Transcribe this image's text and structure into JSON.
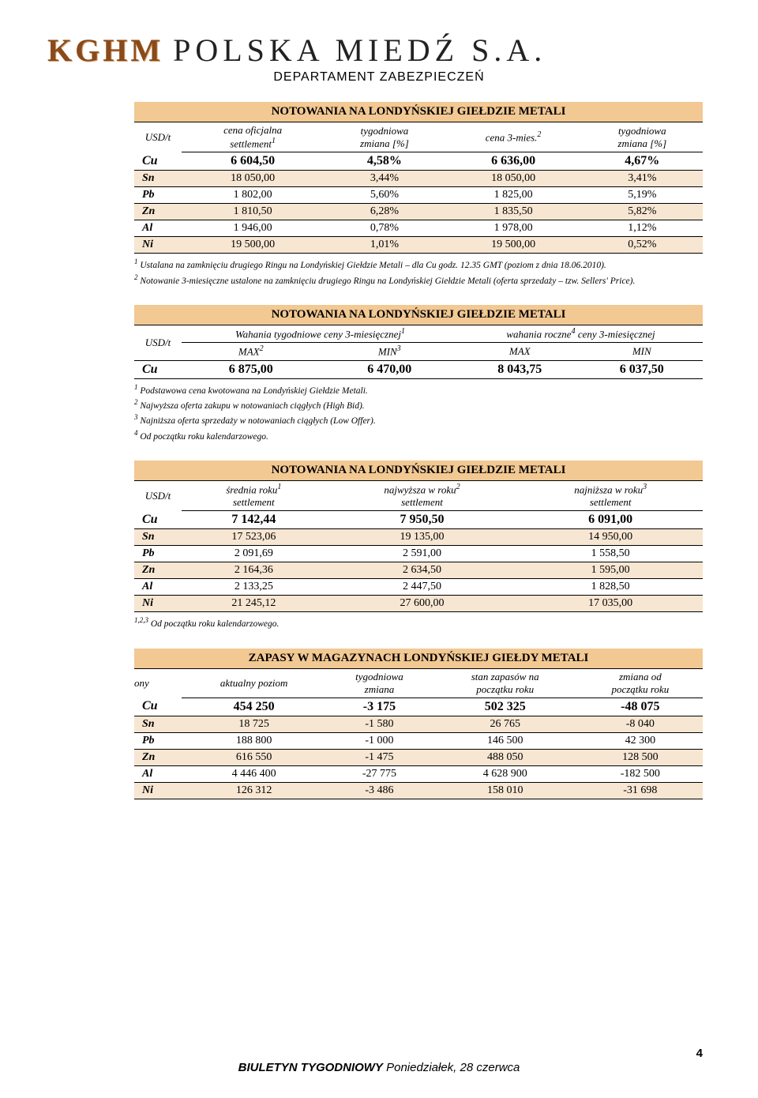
{
  "company": {
    "kghm": "KGHM",
    "rest": "POLSKA MIEDŹ S.A.",
    "dept": "DEPARTAMENT ZABEZPIECZEŃ"
  },
  "table1": {
    "title": "NOTOWANIA NA LONDYŃSKIEJ GIEŁDZIE METALI",
    "unit": "USD/t",
    "h1": "cena oficjalna",
    "h1b": "settlement",
    "h1sup": "1",
    "h2": "tygodniowa",
    "h2b": "zmiana [%]",
    "h3": "cena 3-mies.",
    "h3sup": "2",
    "h4": "tygodniowa",
    "h4b": "zmiana [%]",
    "rows": [
      {
        "sym": "Cu",
        "a": "6 604,50",
        "b": "4,58%",
        "c": "6 636,00",
        "d": "4,67%",
        "bold": true
      },
      {
        "sym": "Sn",
        "a": "18 050,00",
        "b": "3,44%",
        "c": "18 050,00",
        "d": "3,41%",
        "alt": true
      },
      {
        "sym": "Pb",
        "a": "1 802,00",
        "b": "5,60%",
        "c": "1 825,00",
        "d": "5,19%"
      },
      {
        "sym": "Zn",
        "a": "1 810,50",
        "b": "6,28%",
        "c": "1 835,50",
        "d": "5,82%",
        "alt": true
      },
      {
        "sym": "Al",
        "a": "1 946,00",
        "b": "0,78%",
        "c": "1 978,00",
        "d": "1,12%"
      },
      {
        "sym": "Ni",
        "a": "19 500,00",
        "b": "1,01%",
        "c": "19 500,00",
        "d": "0,52%",
        "alt": true
      }
    ],
    "foot1sup": "1",
    "foot1": " Ustalana na zamknięciu drugiego Ringu na Londyńskiej Giełdzie Metali – dla Cu godz. 12.35 GMT (poziom z dnia 18.06.2010).",
    "foot2sup": "2",
    "foot2": " Notowanie 3-miesięczne ustalone na zamknięciu drugiego Ringu na Londyńskiej Giełdzie Metali (oferta sprzedaży – tzw. Sellers' Price)."
  },
  "table2": {
    "title": "NOTOWANIA NA LONDYŃSKIEJ GIEŁDZIE METALI",
    "unit": "USD/t",
    "g1": "Wahania tygodniowe ceny 3-miesięcznej",
    "g1sup": "1",
    "g2": "wahania roczne",
    "g2sup": "4",
    "g2b": " ceny 3-miesięcznej",
    "sh1": "MAX",
    "sh1sup": "2",
    "sh2": "MIN",
    "sh2sup": "3",
    "sh3": "MAX",
    "sh4": "MIN",
    "row": {
      "sym": "Cu",
      "a": "6 875,00",
      "b": "6 470,00",
      "c": "8 043,75",
      "d": "6 037,50"
    },
    "foot1": "Podstawowa cena kwotowana na Londyńskiej Giełdzie Metali.",
    "foot2": "Najwyższa oferta zakupu w notowaniach ciągłych (High Bid).",
    "foot3": "Najniższa oferta sprzedaży w notowaniach ciągłych (Low Offer).",
    "foot4": "Od początku roku kalendarzowego."
  },
  "table3": {
    "title": "NOTOWANIA NA LONDYŃSKIEJ GIEŁDZIE METALI",
    "unit": "USD/t",
    "h1": "średnia roku",
    "h1sup": "1",
    "h1b": "settlement",
    "h2": "najwyższa w roku",
    "h2sup": "2",
    "h2b": "settlement",
    "h3": "najniższa w roku",
    "h3sup": "3",
    "h3b": "settlement",
    "rows": [
      {
        "sym": "Cu",
        "a": "7 142,44",
        "b": "7 950,50",
        "c": "6 091,00",
        "bold": true
      },
      {
        "sym": "Sn",
        "a": "17 523,06",
        "b": "19 135,00",
        "c": "14 950,00",
        "alt": true
      },
      {
        "sym": "Pb",
        "a": "2 091,69",
        "b": "2 591,00",
        "c": "1 558,50"
      },
      {
        "sym": "Zn",
        "a": "2 164,36",
        "b": "2 634,50",
        "c": "1 595,00",
        "alt": true
      },
      {
        "sym": "Al",
        "a": "2 133,25",
        "b": "2 447,50",
        "c": "1 828,50"
      },
      {
        "sym": "Ni",
        "a": "21 245,12",
        "b": "27 600,00",
        "c": "17 035,00",
        "alt": true
      }
    ],
    "footsup": "1,2,3",
    "foot": " Od początku roku kalendarzowego."
  },
  "table4": {
    "title": "ZAPASY W MAGAZYNACH LONDYŃSKIEJ GIEŁDY METALI",
    "unit": "ony",
    "h1": "aktualny poziom",
    "h2": "tygodniowa",
    "h2b": "zmiana",
    "h3": "stan zapasów na",
    "h3b": "początku roku",
    "h4": "zmiana od",
    "h4b": "początku roku",
    "rows": [
      {
        "sym": "Cu",
        "a": "454 250",
        "b": "-3 175",
        "c": "502 325",
        "d": "-48 075",
        "bold": true
      },
      {
        "sym": "Sn",
        "a": "18 725",
        "b": "-1 580",
        "c": "26 765",
        "d": "-8 040",
        "alt": true
      },
      {
        "sym": "Pb",
        "a": "188 800",
        "b": "-1 000",
        "c": "146 500",
        "d": "42 300"
      },
      {
        "sym": "Zn",
        "a": "616 550",
        "b": "-1 475",
        "c": "488 050",
        "d": "128 500",
        "alt": true
      },
      {
        "sym": "Al",
        "a": "4 446 400",
        "b": "-27 775",
        "c": "4 628 900",
        "d": "-182 500"
      },
      {
        "sym": "Ni",
        "a": "126 312",
        "b": "-3 486",
        "c": "158 010",
        "d": "-31 698",
        "alt": true
      }
    ]
  },
  "footer": {
    "bold": "BIULETYN TYGODNIOWY",
    "rest": " Poniedziałek, 28 czerwca",
    "page": "4"
  }
}
